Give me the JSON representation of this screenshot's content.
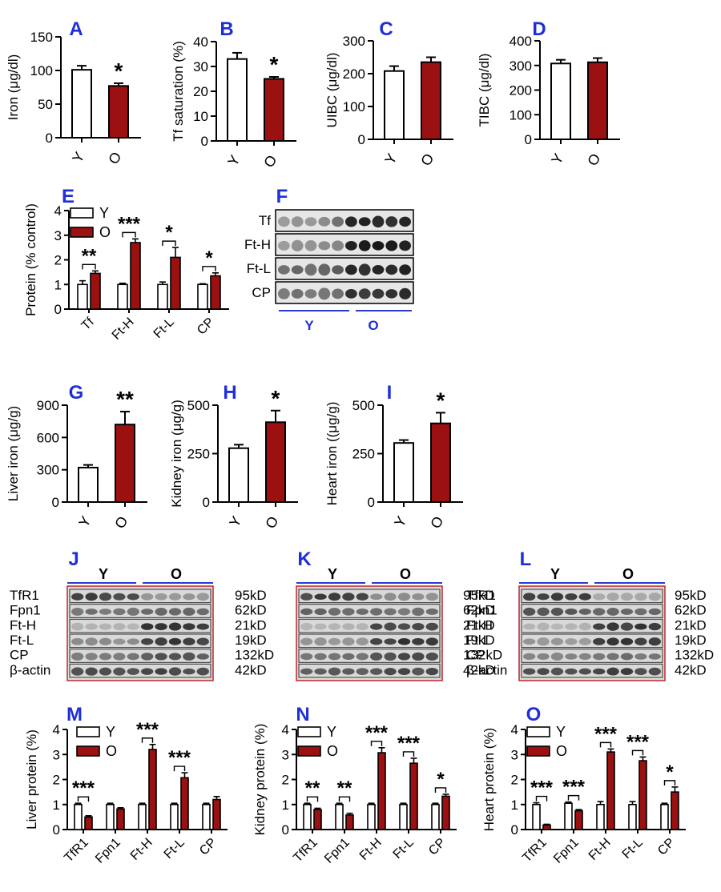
{
  "colors": {
    "young": "#ffffff",
    "old": "#9b1111",
    "panel_letter": "#1f2fd8",
    "blot_frame": "#c0272d",
    "group_line": "#2a3bd1"
  },
  "chart_data": [
    {
      "id": "A",
      "type": "bar",
      "categories": [
        "Y",
        "O"
      ],
      "values": [
        101,
        77
      ],
      "errors": [
        6,
        4
      ],
      "ylabel": "Iron (μg/dl)",
      "ylim": [
        0,
        150
      ],
      "yticks": [
        0,
        50,
        100,
        150
      ],
      "sig": [
        {
          "text": "*",
          "over": 1
        }
      ]
    },
    {
      "id": "B",
      "type": "bar",
      "categories": [
        "Y",
        "O"
      ],
      "values": [
        33,
        25
      ],
      "errors": [
        2.5,
        0.8
      ],
      "ylabel": "Tf saturation (%)",
      "ylim": [
        0,
        40
      ],
      "yticks": [
        0,
        10,
        20,
        30,
        40
      ],
      "sig": [
        {
          "text": "*",
          "over": 1
        }
      ]
    },
    {
      "id": "C",
      "type": "bar",
      "categories": [
        "Y",
        "O"
      ],
      "values": [
        208,
        235
      ],
      "errors": [
        15,
        15
      ],
      "ylabel": "UIBC (μg/dl)",
      "ylim": [
        0,
        300
      ],
      "yticks": [
        0,
        100,
        200,
        300
      ],
      "sig": []
    },
    {
      "id": "D",
      "type": "bar",
      "categories": [
        "Y",
        "O"
      ],
      "values": [
        308,
        313
      ],
      "errors": [
        15,
        17
      ],
      "ylabel": "TIBC (μg/dl)",
      "ylim": [
        0,
        400
      ],
      "yticks": [
        0,
        100,
        200,
        300,
        400
      ],
      "sig": []
    },
    {
      "id": "E",
      "type": "bar",
      "categories": [
        "Tf",
        "Ft-H",
        "Ft-L",
        "CP"
      ],
      "series": [
        {
          "name": "Y",
          "values": [
            1.0,
            1.0,
            1.0,
            1.0
          ],
          "errors": [
            0.15,
            0.05,
            0.1,
            0.03
          ]
        },
        {
          "name": "O",
          "values": [
            1.45,
            2.7,
            2.1,
            1.35
          ],
          "errors": [
            0.1,
            0.15,
            0.4,
            0.12
          ]
        }
      ],
      "ylabel": "Protein (% control)",
      "ylim": [
        0,
        4
      ],
      "yticks": [
        0,
        1,
        2,
        3,
        4
      ],
      "legend": "top-left",
      "sig": [
        "**",
        "***",
        "*",
        "*"
      ]
    },
    {
      "id": "G",
      "type": "bar",
      "categories": [
        "Y",
        "O"
      ],
      "values": [
        320,
        720
      ],
      "errors": [
        25,
        120
      ],
      "ylabel": "Liver iron (μg/g)",
      "ylim": [
        0,
        900
      ],
      "yticks": [
        0,
        300,
        600,
        900
      ],
      "sig": [
        {
          "text": "**",
          "over": 1
        }
      ]
    },
    {
      "id": "H",
      "type": "bar",
      "categories": [
        "Y",
        "O"
      ],
      "values": [
        278,
        412
      ],
      "errors": [
        18,
        60
      ],
      "ylabel": "Kidney iron (μg/g)",
      "ylim": [
        0,
        500
      ],
      "yticks": [
        0,
        250,
        500
      ],
      "sig": [
        {
          "text": "*",
          "over": 1
        }
      ]
    },
    {
      "id": "I",
      "type": "bar",
      "categories": [
        "Y",
        "O"
      ],
      "values": [
        305,
        406
      ],
      "errors": [
        15,
        55
      ],
      "ylabel": "Heart iron ((μg/g)",
      "ylim": [
        0,
        500
      ],
      "yticks": [
        0,
        250,
        500
      ],
      "sig": [
        {
          "text": "*",
          "over": 1
        }
      ]
    },
    {
      "id": "M",
      "type": "bar",
      "categories": [
        "TfR1",
        "Fpn1",
        "Ft-H",
        "Ft-L",
        "CP"
      ],
      "series": [
        {
          "name": "Y",
          "values": [
            1.0,
            1.0,
            1.0,
            1.0,
            1.0
          ],
          "errors": [
            0.05,
            0.05,
            0.05,
            0.05,
            0.05
          ]
        },
        {
          "name": "O",
          "values": [
            0.5,
            0.82,
            3.2,
            2.07,
            1.2
          ],
          "errors": [
            0.05,
            0.05,
            0.2,
            0.2,
            0.12
          ]
        }
      ],
      "ylabel": "Liver protein (%)",
      "ylim": [
        0,
        4
      ],
      "yticks": [
        0,
        1,
        2,
        3,
        4
      ],
      "legend": "top-left",
      "sig": [
        "***",
        "",
        "***",
        "***",
        ""
      ]
    },
    {
      "id": "N",
      "type": "bar",
      "categories": [
        "TfR1",
        "Fpn1",
        "Ft-H",
        "Ft-L",
        "CP"
      ],
      "series": [
        {
          "name": "Y",
          "values": [
            1.0,
            1.0,
            1.0,
            1.0,
            1.0
          ],
          "errors": [
            0.05,
            0.05,
            0.05,
            0.05,
            0.05
          ]
        },
        {
          "name": "O",
          "values": [
            0.8,
            0.58,
            3.07,
            2.65,
            1.33
          ],
          "errors": [
            0.05,
            0.07,
            0.2,
            0.2,
            0.08
          ]
        }
      ],
      "ylabel": "Kidney protein (%)",
      "ylim": [
        0,
        4
      ],
      "yticks": [
        0,
        1,
        2,
        3,
        4
      ],
      "legend": "top-left",
      "sig": [
        "**",
        "**",
        "***",
        "***",
        "*"
      ]
    },
    {
      "id": "O",
      "type": "bar",
      "categories": [
        "TfR1",
        "Fpn1",
        "Ft-H",
        "Ft-L",
        "CP"
      ],
      "series": [
        {
          "name": "Y",
          "values": [
            1.0,
            1.05,
            1.0,
            1.0,
            1.0
          ],
          "errors": [
            0.07,
            0.05,
            0.12,
            0.12,
            0.05
          ]
        },
        {
          "name": "O",
          "values": [
            0.18,
            0.75,
            3.1,
            2.75,
            1.5
          ],
          "errors": [
            0.03,
            0.05,
            0.12,
            0.15,
            0.2
          ]
        }
      ],
      "ylabel": "Heart protein (%)",
      "ylim": [
        0,
        4
      ],
      "yticks": [
        0,
        1,
        2,
        3,
        4
      ],
      "legend": "top-left",
      "sig": [
        "***",
        "***",
        "***",
        "***",
        "*"
      ]
    }
  ],
  "blots": {
    "F": {
      "letter": "F",
      "rows": [
        "Tf",
        "Ft-H",
        "Ft-L",
        "CP"
      ],
      "groups": [
        "Y",
        "O"
      ]
    },
    "J": {
      "letter": "J",
      "left_labels": [
        "TfR1",
        "Fpn1",
        "Ft-H",
        "Ft-L",
        "CP",
        "β-actin"
      ],
      "right_labels": [
        "95kD",
        "62kD",
        "21kD",
        "19kD",
        "132kD",
        "42kD"
      ],
      "groups": [
        "Y",
        "O"
      ]
    },
    "K": {
      "letter": "K",
      "right_labels": [
        "95kD",
        "62kD",
        "21kD",
        "19kD",
        "132kD",
        "42kD"
      ],
      "groups": [
        "Y",
        "O"
      ]
    },
    "L": {
      "letter": "L",
      "left_labels": [
        "TfR1",
        "Fpn1",
        "Ft-H",
        "Ft-L",
        "CP",
        "β-actin"
      ],
      "right_labels": [
        "95kD",
        "62kD",
        "21kD",
        "19kD",
        "132kD",
        "42kD"
      ],
      "groups": [
        "Y",
        "O"
      ]
    }
  }
}
